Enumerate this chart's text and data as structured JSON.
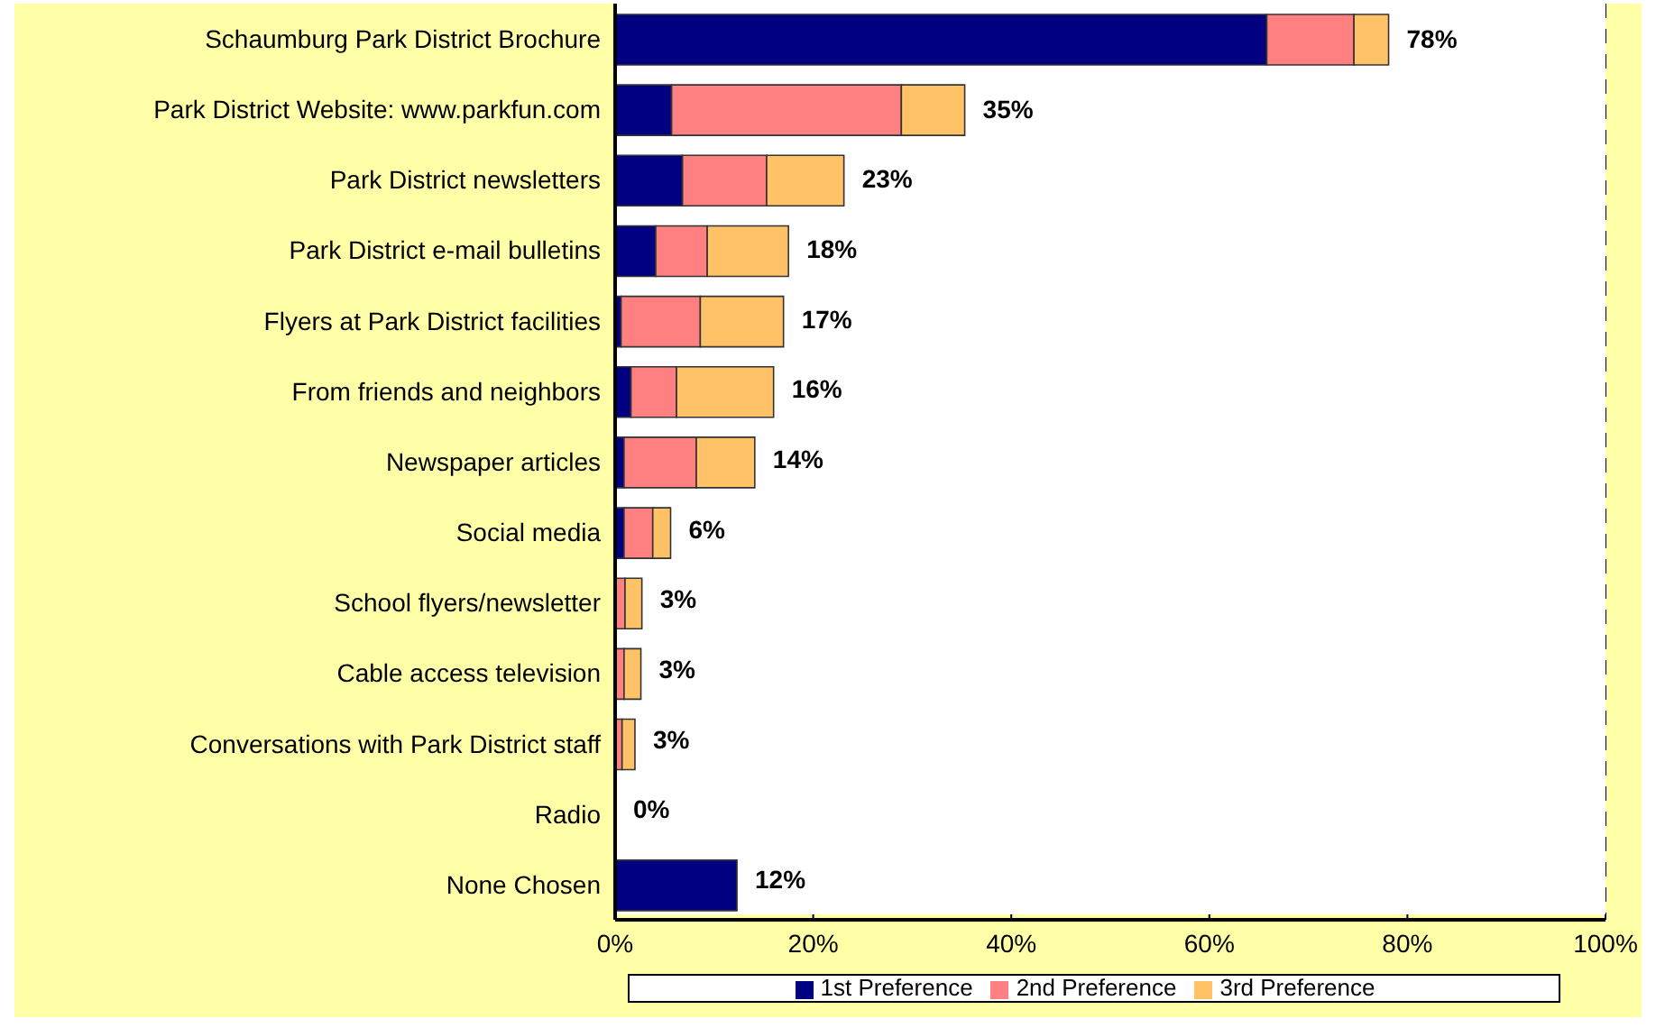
{
  "chart_data": {
    "type": "bar",
    "orientation": "horizontal",
    "stacked": true,
    "categories": [
      "Schaumburg Park District Brochure",
      "Park District Website: www.parkfun.com",
      "Park District newsletters",
      "Park District e-mail bulletins",
      "Flyers at Park District facilities",
      "From friends and neighbors",
      "Newspaper articles",
      "Social media",
      "School flyers/newsletter",
      "Cable access television",
      "Conversations with Park District staff",
      "Radio",
      "None Chosen"
    ],
    "series": [
      {
        "name": "1st Preference",
        "color": "#000080",
        "values": [
          65.8,
          5.7,
          6.8,
          4.1,
          0.6,
          1.6,
          0.9,
          0.9,
          0,
          0,
          null,
          0,
          12.3
        ]
      },
      {
        "name": "2nd Preference",
        "color": "#ff8080",
        "values": [
          8.8,
          23.2,
          8.5,
          5.2,
          8.0,
          4.6,
          7.3,
          2.9,
          1.0,
          0.9,
          0.7,
          0,
          0
        ]
      },
      {
        "name": "3rd Preference",
        "color": "#ffc266",
        "values": [
          3.5,
          6.4,
          7.8,
          8.2,
          8.4,
          9.8,
          5.9,
          1.8,
          1.7,
          1.7,
          1.3,
          0,
          0
        ]
      }
    ],
    "totals": [
      "78%",
      "35%",
      "23%",
      "18%",
      "17%",
      "16%",
      "14%",
      "6%",
      "3%",
      "3%",
      "3%",
      "0%",
      "12%"
    ],
    "xlim": [
      0,
      100
    ],
    "xticks": [
      {
        "value": 0,
        "label": "0%"
      },
      {
        "value": 20,
        "label": "20%"
      },
      {
        "value": 40,
        "label": "40%"
      },
      {
        "value": 60,
        "label": "60%"
      },
      {
        "value": 80,
        "label": "80%"
      },
      {
        "value": 100,
        "label": "100%"
      }
    ],
    "grid": "x",
    "legend": "bottom"
  }
}
